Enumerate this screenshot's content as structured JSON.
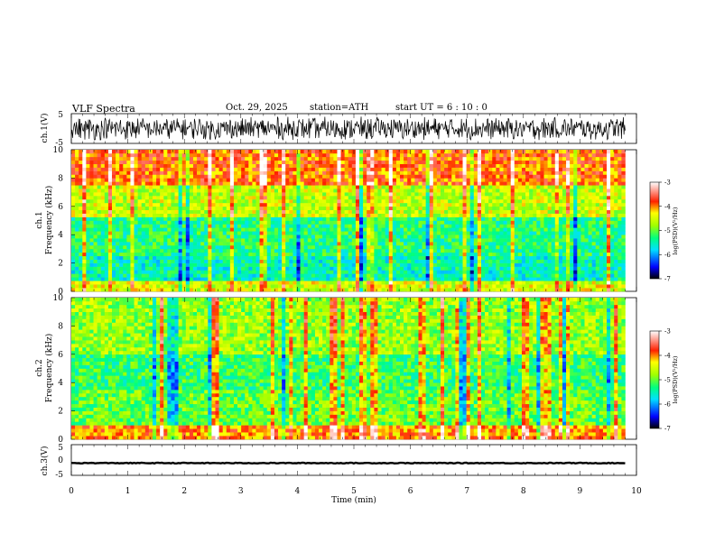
{
  "header": {
    "title": "VLF  Spectra",
    "date": "Oct. 29, 2025",
    "station": "station=ATH",
    "start_ut": "start  UT  =   6  : 10 : 0"
  },
  "chart_data": [
    {
      "id": "ch1_waveform",
      "type": "line",
      "ylabel": "ch.1(V)",
      "ylim": [
        -5,
        5
      ],
      "yticks": [
        "5",
        "-5"
      ],
      "description_of_values": "noise-like waveform oscillating roughly between -4 and 4 V over the full time span",
      "amplitude_range": [
        -4,
        4
      ],
      "x_range_min": [
        0,
        9.8
      ]
    },
    {
      "id": "ch1_spectrogram",
      "type": "heatmap",
      "title_label": "ch.1",
      "ylabel": "Frequency  (kHz)",
      "ylim": [
        0,
        10
      ],
      "yticks": [
        "0",
        "2",
        "4",
        "6",
        "8",
        "10"
      ],
      "x_range_min": [
        0,
        9.8
      ],
      "approx_log_psd_by_band": [
        {
          "f_khz": [
            0,
            0.8
          ],
          "log_psd": -4.5
        },
        {
          "f_khz": [
            0.8,
            2.4
          ],
          "log_psd": -5.5
        },
        {
          "f_khz": [
            2.4,
            5.2
          ],
          "log_psd": -5.3
        },
        {
          "f_khz": [
            5.2,
            7.5
          ],
          "log_psd": -4.6
        },
        {
          "f_khz": [
            7.5,
            10
          ],
          "log_psd": -3.9
        }
      ],
      "colorbar": {
        "label": "log(PSD)(V²/Hz)",
        "range": [
          -7,
          -3
        ],
        "ticks": [
          "-3",
          "-4",
          "-5",
          "-6",
          "-7"
        ]
      }
    },
    {
      "id": "ch2_spectrogram",
      "type": "heatmap",
      "title_label": "ch.2",
      "ylabel": "Frequency  (kHz)",
      "ylim": [
        0,
        10
      ],
      "yticks": [
        "0",
        "2",
        "4",
        "6",
        "8",
        "10"
      ],
      "x_range_min": [
        0,
        9.8
      ],
      "approx_log_psd_by_band": [
        {
          "f_khz": [
            0,
            0.9
          ],
          "log_psd": -4.0
        },
        {
          "f_khz": [
            0.9,
            3.5
          ],
          "log_psd": -5.0
        },
        {
          "f_khz": [
            3.5,
            6.0
          ],
          "log_psd": -5.2
        },
        {
          "f_khz": [
            6.0,
            10
          ],
          "log_psd": -4.8
        }
      ],
      "colorbar": {
        "label": "log(PSD)(V²/Hz)",
        "range": [
          -7,
          -3
        ],
        "ticks": [
          "-3",
          "-4",
          "-5",
          "-6",
          "-7"
        ]
      }
    },
    {
      "id": "ch3_waveform",
      "type": "line",
      "ylabel": "ch.3(V)",
      "ylim": [
        -5,
        5
      ],
      "yticks": [
        "5",
        "0",
        "-5"
      ],
      "description_of_values": "nearly flat signal near -1 V",
      "level_v": -1,
      "x_range_min": [
        0,
        9.8
      ]
    }
  ],
  "xaxis": {
    "label": "Time  (min)",
    "range": [
      0,
      10
    ],
    "ticks": [
      "0",
      "1",
      "2",
      "3",
      "4",
      "5",
      "6",
      "7",
      "8",
      "9",
      "10"
    ]
  },
  "colors": {
    "colormap": [
      "#000000",
      "#0000ff",
      "#00e0ff",
      "#00ff80",
      "#a0ff00",
      "#ffff00",
      "#ff2000",
      "#ffffff"
    ]
  }
}
